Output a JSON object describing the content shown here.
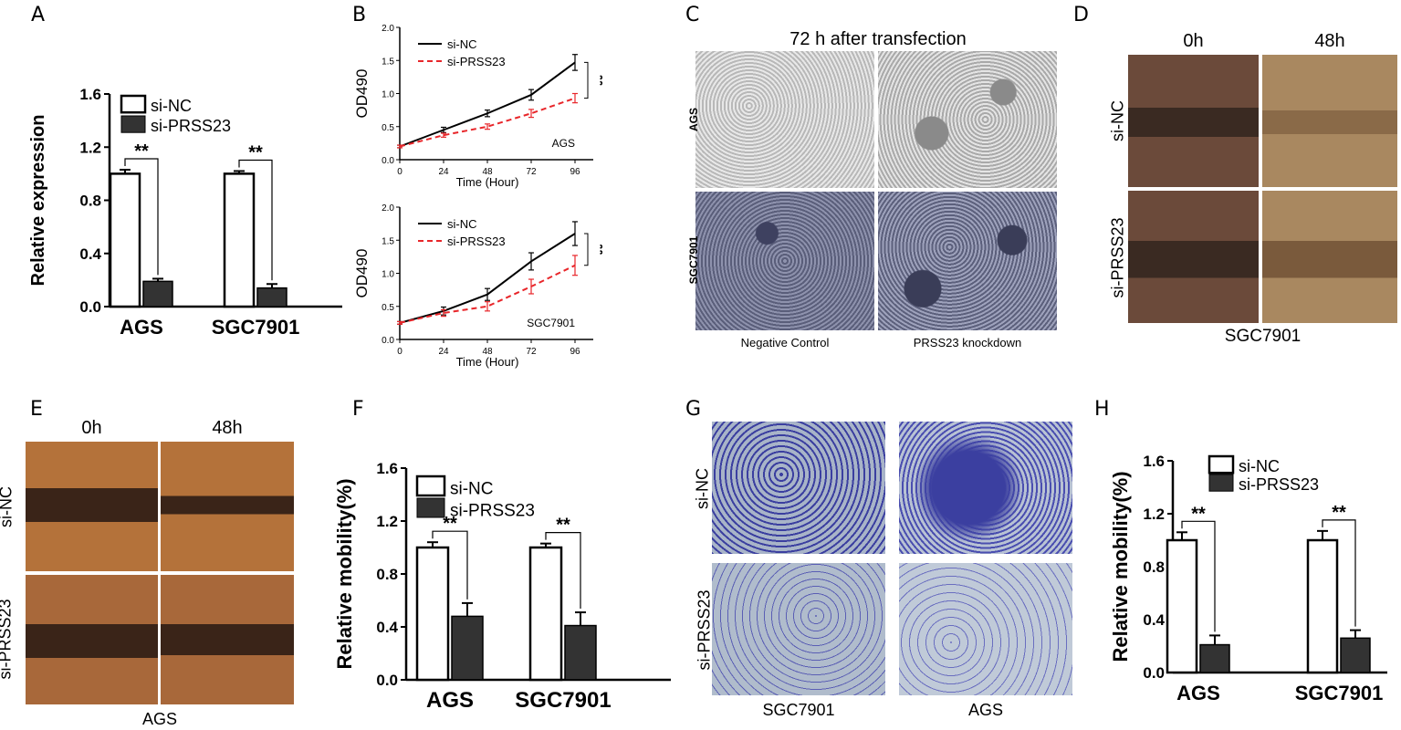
{
  "panel_labels": {
    "A": "A",
    "B": "B",
    "C": "C",
    "D": "D",
    "E": "E",
    "F": "F",
    "G": "G",
    "H": "H"
  },
  "chart_data": [
    {
      "id": "A",
      "type": "bar",
      "categories": [
        "AGS",
        "SGC7901"
      ],
      "series": [
        {
          "name": "si-NC",
          "values": [
            1.0,
            1.0
          ],
          "errors": [
            0.03,
            0.02
          ]
        },
        {
          "name": "si-PRSS23",
          "values": [
            0.19,
            0.14
          ],
          "errors": [
            0.02,
            0.03
          ]
        }
      ],
      "ylabel": "Relative expression",
      "ylim": [
        0,
        1.6
      ],
      "yticks": [
        "0.0",
        "0.4",
        "0.8",
        "1.2",
        "1.6"
      ],
      "significance": [
        "**",
        "**"
      ],
      "legend": "top-left"
    },
    {
      "id": "B1",
      "type": "line",
      "x": [
        0,
        24,
        48,
        72,
        96
      ],
      "series": [
        {
          "name": "si-NC",
          "values": [
            0.2,
            0.45,
            0.7,
            0.98,
            1.47
          ],
          "errors": [
            0.02,
            0.04,
            0.05,
            0.08,
            0.12
          ]
        },
        {
          "name": "si-PRSS23",
          "values": [
            0.2,
            0.37,
            0.5,
            0.7,
            0.93
          ],
          "errors": [
            0.02,
            0.03,
            0.04,
            0.06,
            0.07
          ]
        }
      ],
      "xlabel": "Time (Hour)",
      "ylabel": "OD490",
      "ylim": [
        0,
        2.0
      ],
      "yticks": [
        "0.0",
        "0.5",
        "1.0",
        "1.5",
        "2.0"
      ],
      "xticks": [
        "0",
        "24",
        "48",
        "72",
        "96"
      ],
      "annotation": "AGS",
      "significance": "**"
    },
    {
      "id": "B2",
      "type": "line",
      "x": [
        0,
        24,
        48,
        72,
        96
      ],
      "series": [
        {
          "name": "si-NC",
          "values": [
            0.25,
            0.43,
            0.68,
            1.18,
            1.6
          ],
          "errors": [
            0.02,
            0.06,
            0.09,
            0.13,
            0.18
          ]
        },
        {
          "name": "si-PRSS23",
          "values": [
            0.25,
            0.4,
            0.5,
            0.8,
            1.12
          ],
          "errors": [
            0.02,
            0.05,
            0.07,
            0.11,
            0.15
          ]
        }
      ],
      "xlabel": "Time (Hour)",
      "ylabel": "OD490",
      "ylim": [
        0,
        2.0
      ],
      "yticks": [
        "0.0",
        "0.5",
        "1.0",
        "1.5",
        "2.0"
      ],
      "xticks": [
        "0",
        "24",
        "48",
        "72",
        "96"
      ],
      "annotation": "SGC7901",
      "significance": "**"
    },
    {
      "id": "F",
      "type": "bar",
      "categories": [
        "AGS",
        "SGC7901"
      ],
      "series": [
        {
          "name": "si-NC",
          "values": [
            1.0,
            1.0
          ],
          "errors": [
            0.04,
            0.03
          ]
        },
        {
          "name": "si-PRSS23",
          "values": [
            0.48,
            0.41
          ],
          "errors": [
            0.1,
            0.1
          ]
        }
      ],
      "ylabel": "Relative mobility(%)",
      "ylim": [
        0,
        1.6
      ],
      "yticks": [
        "0.0",
        "0.4",
        "0.8",
        "1.2",
        "1.6"
      ],
      "significance": [
        "**",
        "**"
      ],
      "legend": "top-left"
    },
    {
      "id": "H",
      "type": "bar",
      "categories": [
        "AGS",
        "SGC7901"
      ],
      "series": [
        {
          "name": "si-NC",
          "values": [
            1.0,
            1.0
          ],
          "errors": [
            0.06,
            0.07
          ]
        },
        {
          "name": "si-PRSS23",
          "values": [
            0.21,
            0.26
          ],
          "errors": [
            0.07,
            0.06
          ]
        }
      ],
      "ylabel": "Relative mobility(%)",
      "ylim": [
        0,
        1.6
      ],
      "yticks": [
        "0.0",
        "0.4",
        "0.8",
        "1.2",
        "1.6"
      ],
      "significance": [
        "**",
        "**"
      ],
      "legend": "top-left"
    }
  ],
  "panelC": {
    "title": "72 h after transfection",
    "rows": [
      "AGS",
      "SGC7901"
    ],
    "cols": [
      "Negative Control",
      "PRSS23 knockdown"
    ]
  },
  "panelD": {
    "cols": [
      "0h",
      "48h"
    ],
    "rows": [
      "si-NC",
      "si-PRSS23"
    ],
    "caption": "SGC7901"
  },
  "panelE": {
    "cols": [
      "0h",
      "48h"
    ],
    "rows": [
      "si-NC",
      "si-PRSS23"
    ],
    "caption": "AGS"
  },
  "panelG": {
    "rows": [
      "si-NC",
      "si-PRSS23"
    ],
    "cols": [
      "SGC7901",
      "AGS"
    ]
  },
  "colors": {
    "nc_line": "#000000",
    "kd_line": "#e8262a",
    "kd_bar": "#333333",
    "scratch_D": "#6b4a3a",
    "scratch_E": "#b4723a",
    "transwell": "#3b3fa0",
    "phase_AGS": "#cfcfcf",
    "phase_SGC": "#5e6178"
  }
}
